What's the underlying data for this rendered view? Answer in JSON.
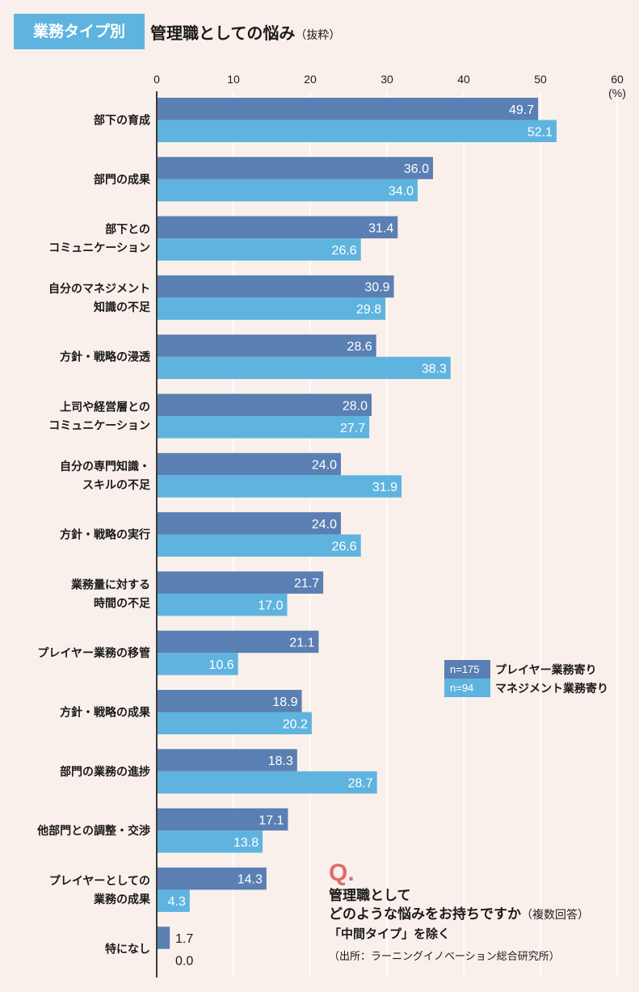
{
  "header": {
    "tag": "業務タイプ別",
    "title": "管理職としての悩み",
    "title_suffix": "（抜粋）"
  },
  "legend": [
    {
      "n": "n=175",
      "label": "プレイヤー業務寄り",
      "color": "#5a7fb3"
    },
    {
      "n": "n=94",
      "label": "マネジメント業務寄り",
      "color": "#5fb4df"
    }
  ],
  "question": {
    "mark": "Q.",
    "line1": "管理職として",
    "line2": "どのような悩みをお持ちですか",
    "line2_note": "（複数回答）",
    "line3": "「中間タイプ」を除く",
    "source": "（出所：ラーニングイノベーション総合研究所）"
  },
  "chart_data": {
    "type": "bar",
    "orientation": "horizontal",
    "title": "管理職としての悩み（抜粋）",
    "xlabel": "",
    "unit_label": "(%)",
    "xlim": [
      0,
      60
    ],
    "xticks": [
      0,
      10,
      20,
      30,
      40,
      50,
      60
    ],
    "grid": true,
    "legend_position": "right-middle",
    "categories": [
      [
        "部下の育成"
      ],
      [
        "部門の成果"
      ],
      [
        "部下との",
        "コミュニケーション"
      ],
      [
        "自分のマネジメント",
        "知識の不足"
      ],
      [
        "方針・戦略の浸透"
      ],
      [
        "上司や経営層との",
        "コミュニケーション"
      ],
      [
        "自分の専門知識・",
        "スキルの不足"
      ],
      [
        "方針・戦略の実行"
      ],
      [
        "業務量に対する",
        "時間の不足"
      ],
      [
        "プレイヤー業務の移管"
      ],
      [
        "方針・戦略の成果"
      ],
      [
        "部門の業務の進捗"
      ],
      [
        "他部門との調整・交渉"
      ],
      [
        "プレイヤーとしての",
        "業務の成果"
      ],
      [
        "特になし"
      ]
    ],
    "series": [
      {
        "name": "プレイヤー業務寄り (n=175)",
        "color": "#5a7fb3",
        "values": [
          49.7,
          36.0,
          31.4,
          30.9,
          28.6,
          28.0,
          24.0,
          24.0,
          21.7,
          21.1,
          18.9,
          18.3,
          17.1,
          14.3,
          1.7
        ]
      },
      {
        "name": "マネジメント業務寄り (n=94)",
        "color": "#5fb4df",
        "values": [
          52.1,
          34.0,
          26.6,
          29.8,
          38.3,
          27.7,
          31.9,
          26.6,
          17.0,
          10.6,
          20.2,
          28.7,
          13.8,
          4.3,
          0.0
        ]
      }
    ]
  }
}
